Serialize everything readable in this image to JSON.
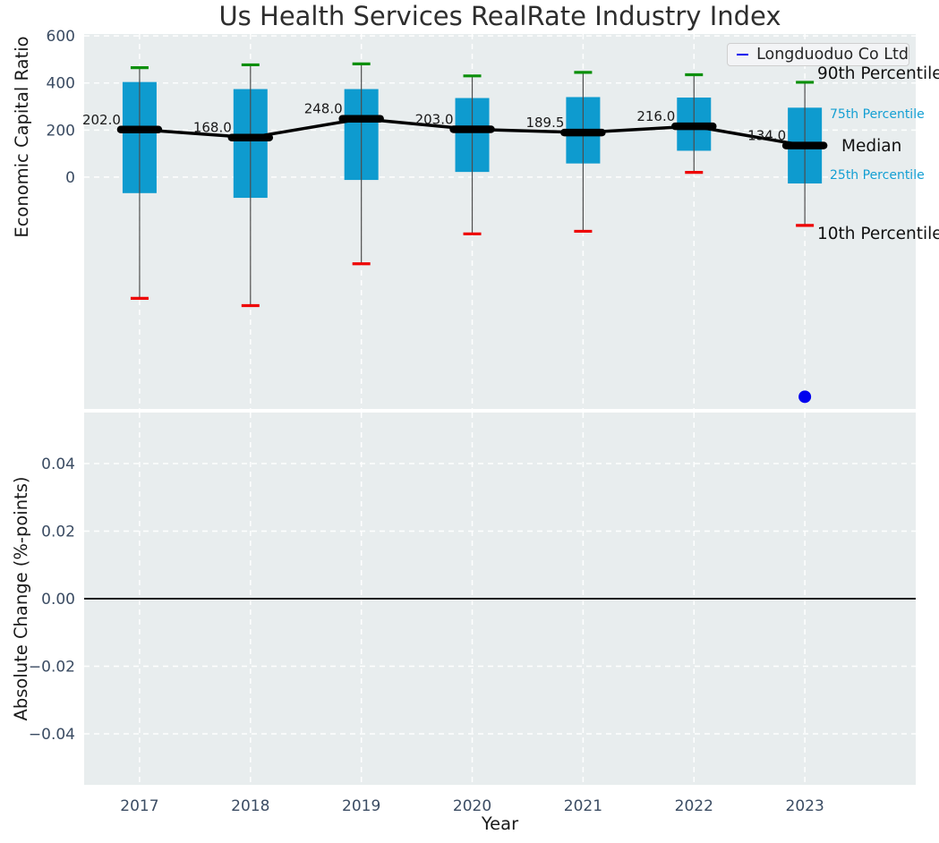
{
  "chart_data": [
    {
      "type": "box",
      "title": "Us Health Services RealRate Industry Index",
      "ylabel": "Economic Capital Ratio",
      "years": [
        2017,
        2018,
        2019,
        2020,
        2021,
        2022,
        2023
      ],
      "boxes": [
        {
          "year": 2017,
          "p10": -515,
          "p25": -68,
          "median": 202.0,
          "p75": 404,
          "p90": 465
        },
        {
          "year": 2018,
          "p10": -546,
          "p25": -88,
          "median": 168.0,
          "p75": 374,
          "p90": 477
        },
        {
          "year": 2019,
          "p10": -368,
          "p25": -12,
          "median": 248.0,
          "p75": 374,
          "p90": 481
        },
        {
          "year": 2020,
          "p10": -241,
          "p25": 22,
          "median": 203.0,
          "p75": 336,
          "p90": 430
        },
        {
          "year": 2021,
          "p10": -230,
          "p25": 58,
          "median": 189.5,
          "p75": 340,
          "p90": 445
        },
        {
          "year": 2022,
          "p10": 20,
          "p25": 112,
          "median": 216.0,
          "p75": 338,
          "p90": 435
        },
        {
          "year": 2023,
          "p10": -205,
          "p25": -27,
          "median": 134.0,
          "p75": 295,
          "p90": 403
        }
      ],
      "median_labels": [
        "202.0",
        "168.0",
        "248.0",
        "203.0",
        "189.5",
        "216.0",
        "134.0"
      ],
      "legend": {
        "label": "Longduoduo Co Ltd"
      },
      "company_point": {
        "year": 2023,
        "value": -933
      },
      "right_labels": [
        "90th Percentile",
        "75th Percentile",
        "Median",
        "25th Percentile",
        "10th Percentile"
      ],
      "yticks": [
        "600",
        "400",
        "200",
        "0"
      ],
      "ytick_values": [
        600,
        400,
        200,
        0
      ],
      "ylim": [
        -985,
        608
      ],
      "grid": true,
      "legend_position": "upper right",
      "colors": {
        "box": "#0e9bcf",
        "p90_cap": "#0a8f0a",
        "p10_cap": "#ee0000",
        "median": "#000000",
        "company": "#0000ee",
        "panel_bg": "#e8edee",
        "grid": "#ffffff",
        "tick_text": "#3b4c63",
        "whisker": "#4d4d4d"
      }
    },
    {
      "type": "line",
      "ylabel": "Absolute Change (%-points)",
      "xlabel": "Year",
      "xticks": [
        "2017",
        "2018",
        "2019",
        "2020",
        "2021",
        "2022",
        "2023"
      ],
      "yticks": [
        "0.04",
        "0.02",
        "0.00",
        "−0.02",
        "−0.04"
      ],
      "ytick_values": [
        0.04,
        0.02,
        0.0,
        -0.02,
        -0.04
      ],
      "ylim": [
        -0.0551,
        0.0551
      ],
      "zero_line": 0.0,
      "grid": true
    }
  ]
}
